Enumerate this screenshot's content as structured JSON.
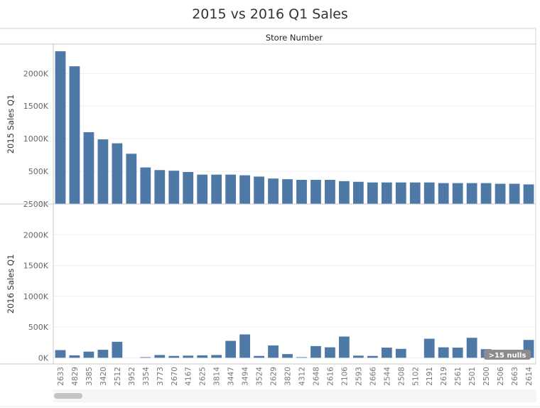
{
  "chart_data": {
    "type": "bar",
    "title": "2015 vs 2016 Q1 Sales",
    "column_header": "Store Number",
    "categories": [
      "2633",
      "4829",
      "3385",
      "3420",
      "2512",
      "3952",
      "3354",
      "3773",
      "2670",
      "4167",
      "2625",
      "3814",
      "3447",
      "3494",
      "3524",
      "2629",
      "3820",
      "4312",
      "2648",
      "2616",
      "2106",
      "2593",
      "2666",
      "2544",
      "2508",
      "5102",
      "2191",
      "2619",
      "2561",
      "2501",
      "2500",
      "2506",
      "2663",
      "2614"
    ],
    "panels": [
      {
        "ylabel": "2015 Sales Q1",
        "yticks": [
          "0K",
          "500K",
          "1000K",
          "1500K",
          "2000K"
        ],
        "ytick_values": [
          0,
          500,
          1000,
          1500,
          2000
        ],
        "ylim": [
          0,
          2450
        ],
        "values": [
          2340,
          2110,
          1100,
          990,
          930,
          770,
          560,
          520,
          510,
          490,
          450,
          450,
          450,
          440,
          420,
          390,
          380,
          370,
          370,
          370,
          350,
          340,
          330,
          330,
          330,
          330,
          330,
          320,
          320,
          320,
          320,
          310,
          310,
          300
        ]
      },
      {
        "ylabel": "2016 Sales Q1",
        "yticks": [
          "0K",
          "500K",
          "1000K",
          "1500K",
          "2000K",
          "2500K"
        ],
        "ytick_values": [
          0,
          500,
          1000,
          1500,
          2000,
          2500
        ],
        "ylim": [
          -100,
          2500
        ],
        "values": [
          125,
          40,
          100,
          130,
          260,
          null,
          10,
          45,
          30,
          35,
          40,
          45,
          275,
          380,
          30,
          200,
          60,
          10,
          190,
          170,
          345,
          35,
          30,
          165,
          145,
          null,
          310,
          170,
          165,
          325,
          140,
          85,
          35,
          290
        ]
      }
    ],
    "null_indicator": ">15 nulls",
    "bar_color": "#4e79a7",
    "grid": true,
    "legend": "none"
  }
}
